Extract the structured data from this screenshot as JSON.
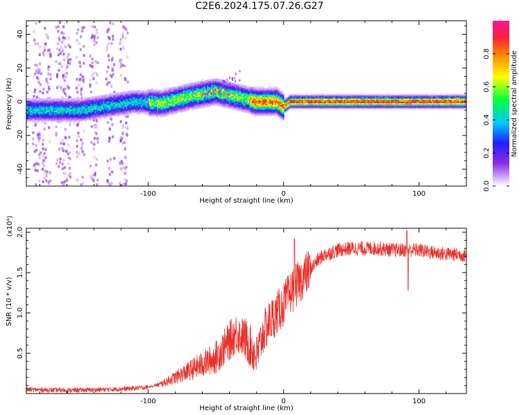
{
  "title": "C2E6.2024.175.07.26.G27",
  "chart_data": [
    {
      "type": "heatmap",
      "xlabel": "Height of straight line (km)",
      "ylabel": "Frequency (Hz)",
      "xlim": [
        -190,
        135
      ],
      "ylim": [
        -50,
        48
      ],
      "xticks": [
        -100,
        0,
        100
      ],
      "yticks": [
        -40,
        -20,
        0,
        20,
        40
      ],
      "colorbar": {
        "label": "Normalized spectral amplitude",
        "range": [
          0.0,
          1.0
        ],
        "ticks": [
          0.0,
          0.2,
          0.4,
          0.6,
          0.8
        ],
        "colors": [
          "#ffffff",
          "#9b30ff",
          "#2020ff",
          "#00ddff",
          "#00ff40",
          "#ffff00",
          "#ff8000",
          "#ff2050",
          "#ff1493"
        ]
      },
      "ridge": {
        "description_points_x": [
          -190,
          -150,
          -110,
          -90,
          -70,
          -50,
          -35,
          -30,
          -20,
          -5,
          0,
          5,
          20,
          60,
          100,
          135
        ],
        "description_points_y": [
          -5,
          -5,
          0,
          -1,
          3,
          6,
          3,
          2,
          0,
          0,
          -3,
          0,
          0,
          0,
          0,
          0
        ]
      }
    },
    {
      "type": "line",
      "xlabel": "Height of straight line (km)",
      "ylabel": "SNR (10 * v/v)",
      "yscale_label": "(x10⁴)",
      "xlim": [
        -190,
        135
      ],
      "ylim": [
        0,
        2.05
      ],
      "xticks": [
        -100,
        0,
        100
      ],
      "yticks": [
        0.5,
        1.0,
        1.5,
        2.0
      ],
      "ytick_labels": [
        "0.5",
        "1.0",
        "1.5",
        "2.0"
      ],
      "series": [
        {
          "color": "#e8302a",
          "x": [
            -190,
            -160,
            -130,
            -115,
            -100,
            -90,
            -80,
            -70,
            -60,
            -50,
            -45,
            -40,
            -35,
            -30,
            -25,
            -20,
            -15,
            -10,
            -5,
            0,
            5,
            10,
            15,
            20,
            25,
            30,
            40,
            50,
            60,
            70,
            80,
            90,
            100,
            110,
            120,
            135
          ],
          "y": [
            0.05,
            0.04,
            0.05,
            0.06,
            0.08,
            0.12,
            0.2,
            0.28,
            0.36,
            0.45,
            0.55,
            0.65,
            0.75,
            0.7,
            0.6,
            0.45,
            0.75,
            0.9,
            1.0,
            1.1,
            1.25,
            1.35,
            1.45,
            1.55,
            1.65,
            1.72,
            1.78,
            1.8,
            1.8,
            1.8,
            1.78,
            1.78,
            1.78,
            1.75,
            1.73,
            1.72
          ]
        }
      ]
    }
  ]
}
